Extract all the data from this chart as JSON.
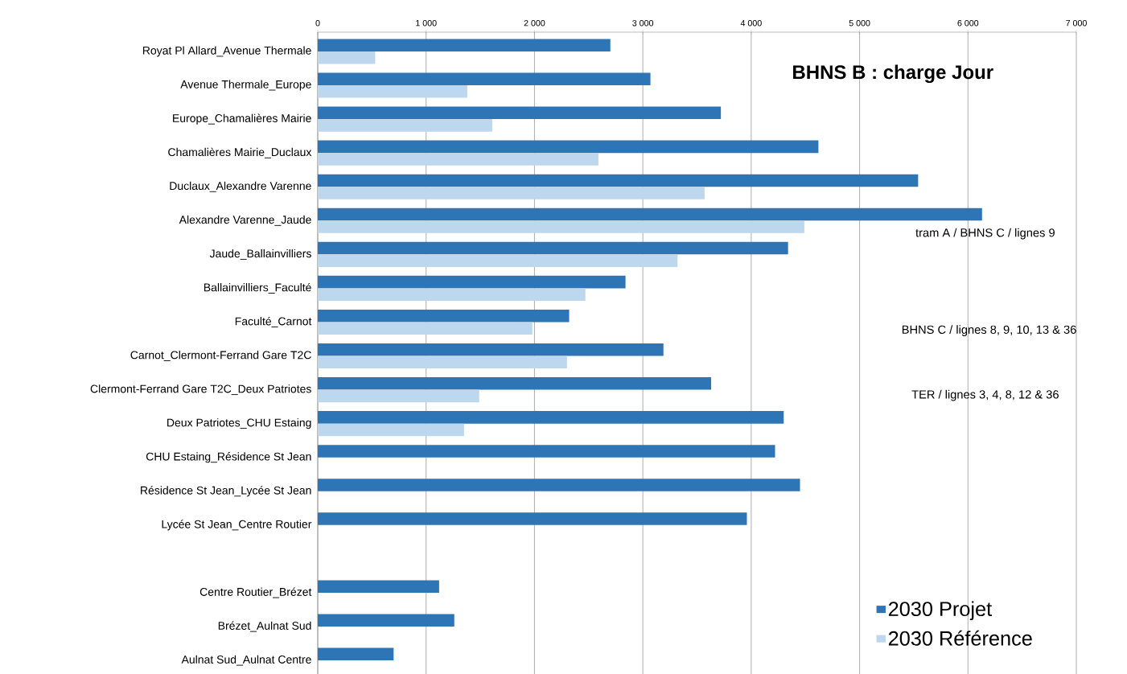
{
  "chart_data": {
    "type": "bar",
    "orientation": "horizontal",
    "title": "BHNS B : charge Jour",
    "categories": [
      "Royat Pl Allard_Avenue Thermale",
      "Avenue Thermale_Europe",
      "Europe_Chamalières Mairie",
      "Chamalières Mairie_Duclaux",
      "Duclaux_Alexandre Varenne",
      "Alexandre Varenne_Jaude",
      "Jaude_Ballainvilliers",
      "Ballainvilliers_Faculté",
      "Faculté_Carnot",
      "Carnot_Clermont-Ferrand Gare T2C",
      "Clermont-Ferrand Gare T2C_Deux Patriotes",
      "Deux Patriotes_CHU Estaing",
      "CHU Estaing_Résidence St Jean",
      "Résidence St Jean_Lycée St Jean",
      "Lycée St Jean_Centre Routier",
      null,
      "Centre Routier_Brézet",
      "Brézet_Aulnat Sud",
      "Aulnat Sud_Aulnat Centre"
    ],
    "series": [
      {
        "name": "2030 Projet",
        "color": "#2e75b6",
        "values": [
          2700,
          3070,
          3720,
          4620,
          5540,
          6130,
          4340,
          2840,
          2320,
          3190,
          3630,
          4300,
          4220,
          4450,
          3960,
          null,
          1120,
          1260,
          700
        ]
      },
      {
        "name": "2030 Référence",
        "color": "#bdd7ee",
        "values": [
          530,
          1380,
          1610,
          2590,
          3570,
          4490,
          3320,
          2470,
          1980,
          2300,
          1490,
          1350,
          null,
          null,
          null,
          null,
          null,
          null,
          null
        ]
      }
    ],
    "xlim": [
      0,
      7000
    ],
    "xticks": [
      0,
      {
        "value": 1000,
        "label": "1 000"
      },
      {
        "value": 2000,
        "label": "2 000"
      },
      {
        "value": 3000,
        "label": "3 000"
      },
      {
        "value": 4000,
        "label": "4 000"
      },
      {
        "value": 5000,
        "label": "5 000"
      },
      {
        "value": 6000,
        "label": "6 000"
      },
      {
        "value": 7000,
        "label": "7 000"
      }
    ],
    "grid": "x",
    "legend": "bottom right",
    "annotations": [
      "tram A / BHNS C / lignes 9",
      "BHNS C / lignes 8, 9, 10, 13 & 36",
      "TER / lignes 3, 4, 8, 12 & 36"
    ]
  }
}
